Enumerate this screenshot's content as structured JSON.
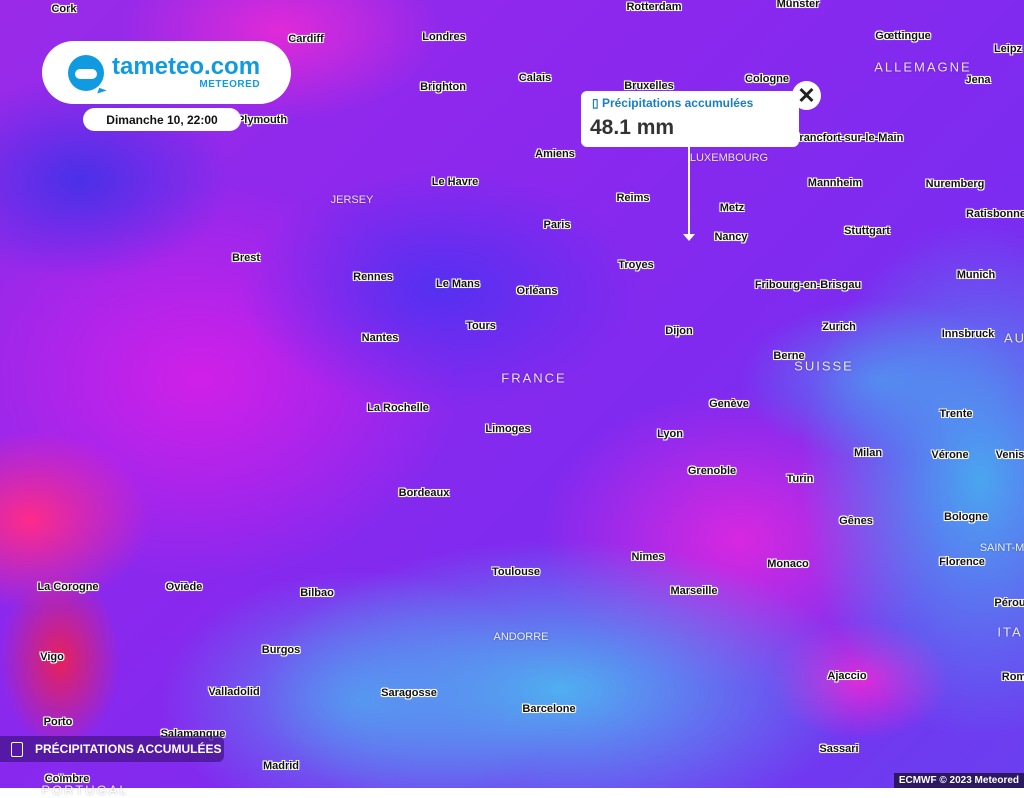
{
  "brand": {
    "name": "tameteo.com",
    "sub": "METEORED",
    "color": "#109be0"
  },
  "timestamp": "Dimanche 10, 22:00",
  "popup": {
    "icon": "rain-gauge-icon",
    "label": "Précipitations accumulées",
    "value": "48.1 mm",
    "close": "✕"
  },
  "legend": {
    "icon": "rain-gauge-icon",
    "label": "PRÉCIPITATIONS ACCUMULÉES"
  },
  "credit": "ECMWF © 2023 Meteored",
  "cities": [
    "Cork",
    "Cardiff",
    "Londres",
    "Rotterdam",
    "Münster",
    "Gœttingue",
    "Leipz",
    "Calais",
    "Brighton",
    "Bruxelles",
    "Cologne",
    "Jena",
    "Plymouth",
    "Amiens",
    "Francfort-sur-le-Main",
    "Le Havre",
    "Mannheim",
    "Nuremberg",
    "Reims",
    "Metz",
    "Ratisbonne",
    "Paris",
    "Stuttgart",
    "Nancy",
    "Brest",
    "Troyes",
    "Munich",
    "Rennes",
    "Le Mans",
    "Orléans",
    "Fribourg-en-Brisgau",
    "Tours",
    "Zurich",
    "Dijon",
    "Innsbruck",
    "Nantes",
    "Berne",
    "La Rochelle",
    "Genève",
    "Trente",
    "Limoges",
    "Lyon",
    "Milan",
    "Vérone",
    "Venis",
    "Grenoble",
    "Turin",
    "Bordeaux",
    "Gênes",
    "Bologne",
    "Nimes",
    "Monaco",
    "Florence",
    "La Corogne",
    "Oviède",
    "Toulouse",
    "Marseille",
    "Bilbao",
    "Pérou",
    "Burgos",
    "Vigo",
    "Ajaccio",
    "Rom",
    "Valladolid",
    "Saragosse",
    "Barcelone",
    "Porto",
    "Salamanque",
    "Sassari",
    "Madrid",
    "Coïmbre"
  ],
  "countries": [
    "ALLEMAGNE",
    "LUXEMBOURG",
    "JERSEY",
    "FRANCE",
    "SUISSE",
    "AU",
    "SAINT-M",
    "ITA",
    "ANDORRE",
    "PORTUGAL"
  ]
}
